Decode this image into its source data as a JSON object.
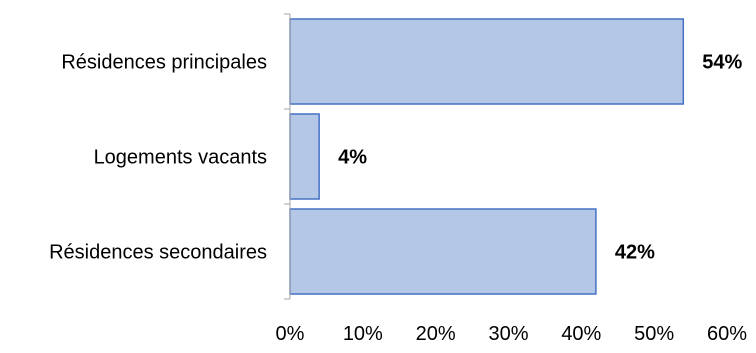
{
  "chart_data": {
    "type": "bar",
    "orientation": "horizontal",
    "categories": [
      "Résidences principales",
      "Logements vacants",
      "Résidences secondaires"
    ],
    "values": [
      54,
      4,
      42
    ],
    "data_labels": [
      "54%",
      "4%",
      "42%"
    ],
    "xlim": [
      0,
      60
    ],
    "x_ticks": [
      0,
      10,
      20,
      30,
      40,
      50,
      60
    ],
    "x_tick_labels": [
      "0%",
      "10%",
      "20%",
      "30%",
      "40%",
      "50%",
      "60%"
    ],
    "title": "",
    "xlabel": "",
    "ylabel": "",
    "grid": false,
    "legend": "none",
    "colors": {
      "bar_fill": "#b4c7e7",
      "bar_stroke": "#4472c4",
      "axis": "#a6a6a6",
      "text": "#000000"
    }
  }
}
